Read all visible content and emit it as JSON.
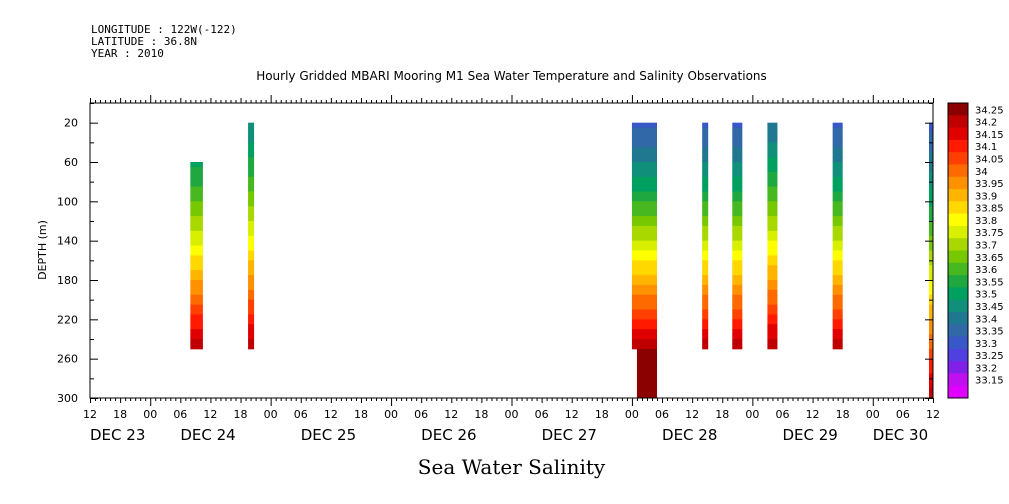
{
  "header": {
    "longitude": "LONGITUDE : 122W(-122)",
    "latitude": "LATITUDE : 36.8N",
    "year": "YEAR : 2010"
  },
  "title": "Hourly Gridded MBARI Mooring M1 Sea Water Temperature and Salinity Observations",
  "bottom_title": "Sea Water Salinity",
  "chart_data": {
    "type": "heatmap",
    "title": "Hourly Gridded MBARI Mooring M1 Sea Water Temperature and Salinity Observations",
    "variable": "Sea Water Salinity",
    "ylabel": "DEPTH (m)",
    "ylim": [
      300,
      0
    ],
    "yticks": [
      20,
      60,
      100,
      140,
      180,
      220,
      260,
      300
    ],
    "x_range_hours": [
      0,
      168
    ],
    "x_origin": "DEC 23 12:00",
    "hour_tick_labels": [
      "12",
      "18",
      "00",
      "06",
      "12",
      "18",
      "00",
      "06",
      "12",
      "18",
      "00",
      "06",
      "12",
      "18",
      "00",
      "06",
      "12",
      "18",
      "00",
      "06",
      "12",
      "18",
      "00",
      "06",
      "12",
      "18",
      "00",
      "06",
      "12"
    ],
    "day_labels": [
      {
        "label": "DEC 23",
        "hour": 0
      },
      {
        "label": "DEC 24",
        "hour": 18
      },
      {
        "label": "DEC 25",
        "hour": 42
      },
      {
        "label": "DEC 26",
        "hour": 66
      },
      {
        "label": "DEC 27",
        "hour": 90
      },
      {
        "label": "DEC 28",
        "hour": 114
      },
      {
        "label": "DEC 29",
        "hour": 138
      },
      {
        "label": "DEC 30",
        "hour": 156
      }
    ],
    "colorbar": {
      "levels": [
        "34.25",
        "34.2",
        "34.15",
        "34.1",
        "34.05",
        "34",
        "33.95",
        "33.9",
        "33.85",
        "33.8",
        "33.75",
        "33.7",
        "33.65",
        "33.6",
        "33.55",
        "33.5",
        "33.45",
        "33.4",
        "33.35",
        "33.3",
        "33.25",
        "33.2",
        "33.15"
      ],
      "colors": [
        "#8b0000",
        "#c00000",
        "#e00000",
        "#ff1a00",
        "#ff4000",
        "#ff6a00",
        "#ff9000",
        "#ffb400",
        "#ffd800",
        "#ffff00",
        "#d8ef00",
        "#a8d800",
        "#78c800",
        "#48b820",
        "#20a840",
        "#00a060",
        "#10907a",
        "#207890",
        "#3068a8",
        "#3858c8",
        "#5040e0",
        "#8020e8",
        "#c010f0",
        "#e000ff"
      ],
      "min": 33.15,
      "max": 34.25
    },
    "profiles": [
      {
        "hour_start": 20.0,
        "hour_end": 22.5,
        "depth_top": 60,
        "depth_bottom": 250,
        "salinity_top": 33.52,
        "salinity_bottom": 34.2
      },
      {
        "hour_start": 31.5,
        "hour_end": 32.7,
        "depth_top": 20,
        "depth_bottom": 250,
        "salinity_top": 33.45,
        "salinity_bottom": 34.2
      },
      {
        "hour_start": 108.0,
        "hour_end": 113.0,
        "depth_top": 20,
        "depth_bottom": 250,
        "salinity_top": 33.33,
        "salinity_bottom": 34.2
      },
      {
        "hour_start": 109.0,
        "hour_end": 113.0,
        "depth_top": 250,
        "depth_bottom": 300,
        "salinity_top": 34.22,
        "salinity_bottom": 34.25
      },
      {
        "hour_start": 122.0,
        "hour_end": 123.2,
        "depth_top": 20,
        "depth_bottom": 250,
        "salinity_top": 33.33,
        "salinity_bottom": 34.2
      },
      {
        "hour_start": 128.0,
        "hour_end": 130.0,
        "depth_top": 20,
        "depth_bottom": 250,
        "salinity_top": 33.33,
        "salinity_bottom": 34.2
      },
      {
        "hour_start": 135.0,
        "hour_end": 137.0,
        "depth_top": 20,
        "depth_bottom": 250,
        "salinity_top": 33.4,
        "salinity_bottom": 34.2
      },
      {
        "hour_start": 148.0,
        "hour_end": 150.0,
        "depth_top": 20,
        "depth_bottom": 250,
        "salinity_top": 33.33,
        "salinity_bottom": 34.2
      },
      {
        "hour_start": 167.2,
        "hour_end": 168.0,
        "depth_top": 20,
        "depth_bottom": 300,
        "salinity_top": 33.33,
        "salinity_bottom": 34.2
      }
    ]
  }
}
